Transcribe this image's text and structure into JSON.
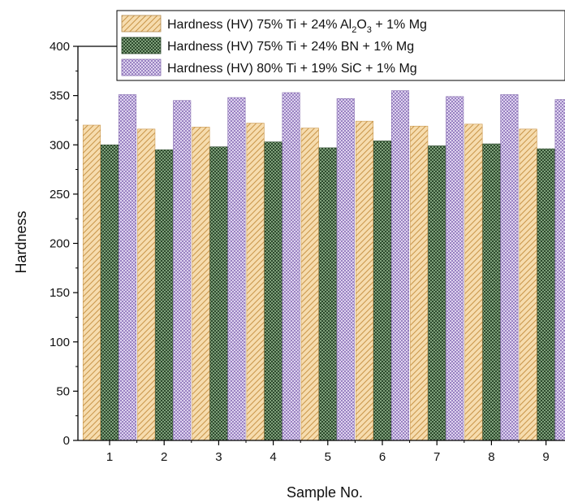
{
  "chart_data": {
    "type": "bar",
    "xlabel": "Sample No.",
    "ylabel": "Hardness",
    "categories": [
      "1",
      "2",
      "3",
      "4",
      "5",
      "6",
      "7",
      "8",
      "9"
    ],
    "ylim": [
      0,
      400
    ],
    "yticks": [
      "0",
      "50",
      "100",
      "150",
      "200",
      "250",
      "300",
      "350",
      "400"
    ],
    "grid": false,
    "legend_position": "top",
    "series": [
      {
        "name": "Hardness (HV) 75% Ti + 24% Al2O3 + 1% Mg",
        "values": [
          320,
          316,
          318,
          322,
          317,
          324,
          319,
          321,
          316
        ],
        "color": "#e8b978"
      },
      {
        "name": "Hardness (HV) 75% Ti + 24% BN + 1% Mg",
        "values": [
          300,
          295,
          298,
          303,
          297,
          304,
          299,
          301,
          296
        ],
        "color": "#3f5d3d"
      },
      {
        "name": "Hardness (HV) 80% Ti + 19% SiC + 1% Mg",
        "values": [
          351,
          345,
          348,
          353,
          347,
          355,
          349,
          351,
          346
        ],
        "color": "#a690c8"
      }
    ]
  }
}
